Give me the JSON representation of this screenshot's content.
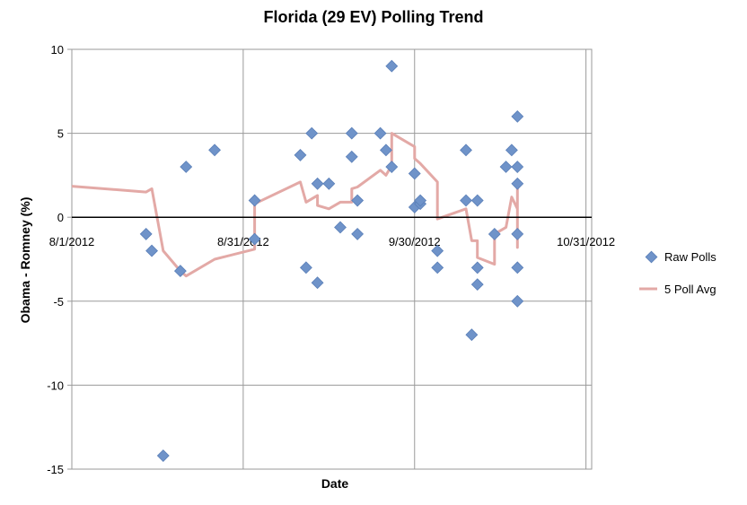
{
  "chart_data": {
    "type": "scatter",
    "title": "Florida (29 EV) Polling Trend",
    "xlabel": "Date",
    "ylabel": "Obama - Romney (%)",
    "ylim": [
      -15,
      10
    ],
    "yticks": [
      "10",
      "5",
      "0",
      "-5",
      "-10",
      "-15"
    ],
    "xlim": [
      "2012-08-01",
      "2012-10-31"
    ],
    "xticks": [
      "8/1/2012",
      "8/31/2012",
      "9/30/2012",
      "10/31/2012"
    ],
    "grid": true,
    "legend": "right",
    "series": [
      {
        "name": "Raw Polls",
        "kind": "scatter",
        "color": "#6f93c9",
        "points": [
          {
            "x": "2012-08-14",
            "y": -1
          },
          {
            "x": "2012-08-15",
            "y": -2
          },
          {
            "x": "2012-08-17",
            "y": -14.2
          },
          {
            "x": "2012-08-20",
            "y": -3.2
          },
          {
            "x": "2012-08-21",
            "y": 3
          },
          {
            "x": "2012-08-26",
            "y": 4
          },
          {
            "x": "2012-09-02",
            "y": 1
          },
          {
            "x": "2012-09-02",
            "y": -1.3
          },
          {
            "x": "2012-09-10",
            "y": 3.7
          },
          {
            "x": "2012-09-11",
            "y": -3
          },
          {
            "x": "2012-09-12",
            "y": 5
          },
          {
            "x": "2012-09-13",
            "y": 2
          },
          {
            "x": "2012-09-13",
            "y": -3.9
          },
          {
            "x": "2012-09-15",
            "y": 2
          },
          {
            "x": "2012-09-17",
            "y": -0.6
          },
          {
            "x": "2012-09-19",
            "y": 5
          },
          {
            "x": "2012-09-19",
            "y": 3.6
          },
          {
            "x": "2012-09-20",
            "y": 1
          },
          {
            "x": "2012-09-20",
            "y": -1
          },
          {
            "x": "2012-09-24",
            "y": 5
          },
          {
            "x": "2012-09-25",
            "y": 4
          },
          {
            "x": "2012-09-26",
            "y": 9
          },
          {
            "x": "2012-09-26",
            "y": 3
          },
          {
            "x": "2012-09-30",
            "y": 2.6
          },
          {
            "x": "2012-09-30",
            "y": 0.6
          },
          {
            "x": "2012-10-01",
            "y": 0.8
          },
          {
            "x": "2012-10-01",
            "y": 1
          },
          {
            "x": "2012-10-04",
            "y": -2
          },
          {
            "x": "2012-10-04",
            "y": -3
          },
          {
            "x": "2012-10-09",
            "y": 4
          },
          {
            "x": "2012-10-09",
            "y": 1
          },
          {
            "x": "2012-10-10",
            "y": -7
          },
          {
            "x": "2012-10-11",
            "y": 1
          },
          {
            "x": "2012-10-11",
            "y": -3
          },
          {
            "x": "2012-10-11",
            "y": -4
          },
          {
            "x": "2012-10-14",
            "y": -1
          },
          {
            "x": "2012-10-16",
            "y": 3
          },
          {
            "x": "2012-10-17",
            "y": 4
          },
          {
            "x": "2012-10-18",
            "y": 6
          },
          {
            "x": "2012-10-18",
            "y": 3
          },
          {
            "x": "2012-10-18",
            "y": 2
          },
          {
            "x": "2012-10-18",
            "y": -1
          },
          {
            "x": "2012-10-18",
            "y": -3
          },
          {
            "x": "2012-10-18",
            "y": -5
          }
        ]
      },
      {
        "name": "5 Poll Avg",
        "kind": "line",
        "color": "#e3a9a6",
        "points": [
          {
            "x": "2012-08-01",
            "y": 1.85
          },
          {
            "x": "2012-08-14",
            "y": 1.5
          },
          {
            "x": "2012-08-15",
            "y": 1.7
          },
          {
            "x": "2012-08-17",
            "y": -2
          },
          {
            "x": "2012-08-20",
            "y": -3.2
          },
          {
            "x": "2012-08-21",
            "y": -3.5
          },
          {
            "x": "2012-08-26",
            "y": -2.5
          },
          {
            "x": "2012-09-02",
            "y": -1.9
          },
          {
            "x": "2012-09-02",
            "y": 0.8
          },
          {
            "x": "2012-09-10",
            "y": 2.1
          },
          {
            "x": "2012-09-11",
            "y": 0.9
          },
          {
            "x": "2012-09-13",
            "y": 1.3
          },
          {
            "x": "2012-09-13",
            "y": 0.7
          },
          {
            "x": "2012-09-15",
            "y": 0.5
          },
          {
            "x": "2012-09-17",
            "y": 0.9
          },
          {
            "x": "2012-09-19",
            "y": 0.9
          },
          {
            "x": "2012-09-19",
            "y": 1.7
          },
          {
            "x": "2012-09-20",
            "y": 1.8
          },
          {
            "x": "2012-09-24",
            "y": 2.8
          },
          {
            "x": "2012-09-25",
            "y": 2.5
          },
          {
            "x": "2012-09-26",
            "y": 3.1
          },
          {
            "x": "2012-09-26",
            "y": 5
          },
          {
            "x": "2012-09-30",
            "y": 4.2
          },
          {
            "x": "2012-09-30",
            "y": 3.5
          },
          {
            "x": "2012-10-01",
            "y": 3.2
          },
          {
            "x": "2012-10-04",
            "y": 2.1
          },
          {
            "x": "2012-10-04",
            "y": -0.1
          },
          {
            "x": "2012-10-09",
            "y": 0.5
          },
          {
            "x": "2012-10-10",
            "y": -1.4
          },
          {
            "x": "2012-10-11",
            "y": -1.4
          },
          {
            "x": "2012-10-11",
            "y": -2.4
          },
          {
            "x": "2012-10-14",
            "y": -2.8
          },
          {
            "x": "2012-10-14",
            "y": -1
          },
          {
            "x": "2012-10-16",
            "y": -0.6
          },
          {
            "x": "2012-10-17",
            "y": 1.2
          },
          {
            "x": "2012-10-18",
            "y": 0.5
          },
          {
            "x": "2012-10-18",
            "y": -1.8
          },
          {
            "x": "2012-10-18",
            "y": 1.8
          }
        ]
      }
    ]
  }
}
